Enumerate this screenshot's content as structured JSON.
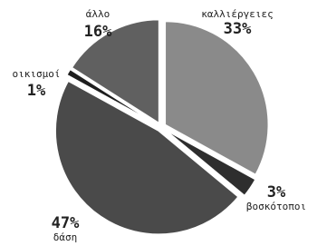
{
  "chart_data": {
    "type": "pie",
    "categories": [
      "καλλιέργειες",
      "βοσκότοποι",
      "δάση",
      "οικισμοί",
      "άλλο"
    ],
    "values": [
      33,
      3,
      47,
      1,
      16
    ],
    "value_labels": [
      "33%",
      "3%",
      "47%",
      "1%",
      "16%"
    ],
    "colors": [
      "#8a8a8a",
      "#2e2e2e",
      "#4a4a4a",
      "#1e1e1e",
      "#606060"
    ]
  }
}
